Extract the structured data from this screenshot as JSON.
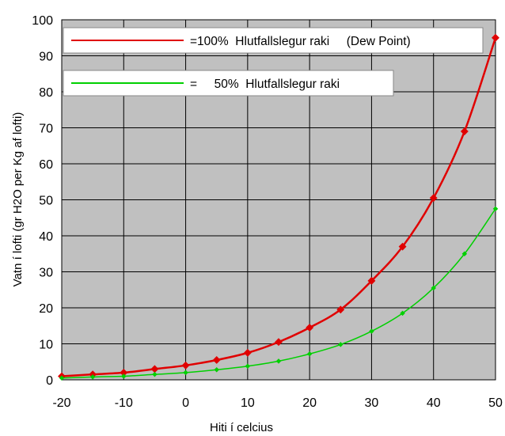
{
  "chart_data": {
    "type": "line",
    "title": "",
    "xlabel": "Hiti í celcius",
    "ylabel": "Vatn í lofti (gr H2O per Kg af lofti)",
    "xlim": [
      -20,
      50
    ],
    "ylim": [
      0,
      100
    ],
    "x_ticks": [
      "-20",
      "-10",
      "0",
      "10",
      "20",
      "30",
      "40",
      "50"
    ],
    "y_ticks": [
      "0",
      "10",
      "20",
      "30",
      "40",
      "50",
      "60",
      "70",
      "80",
      "90",
      "100"
    ],
    "grid": true,
    "legend_position": "top-left",
    "x": [
      -20,
      -15,
      -10,
      -5,
      0,
      5,
      10,
      15,
      20,
      25,
      30,
      35,
      40,
      45,
      50
    ],
    "series": [
      {
        "legend_label": "=100%  Hlutfallslegur raki     (Dew Point)",
        "color": "#e00000",
        "values": [
          1.0,
          1.5,
          2.0,
          3.0,
          4.0,
          5.5,
          7.5,
          10.5,
          14.5,
          19.5,
          27.5,
          37.0,
          50.5,
          69.0,
          95.0
        ]
      },
      {
        "legend_label": "=     50%  Hlutfallslegur raki",
        "color": "#00d000",
        "values": [
          0.5,
          0.8,
          1.0,
          1.5,
          2.0,
          2.8,
          3.8,
          5.2,
          7.2,
          9.8,
          13.5,
          18.5,
          25.5,
          35.0,
          47.5
        ]
      }
    ]
  }
}
